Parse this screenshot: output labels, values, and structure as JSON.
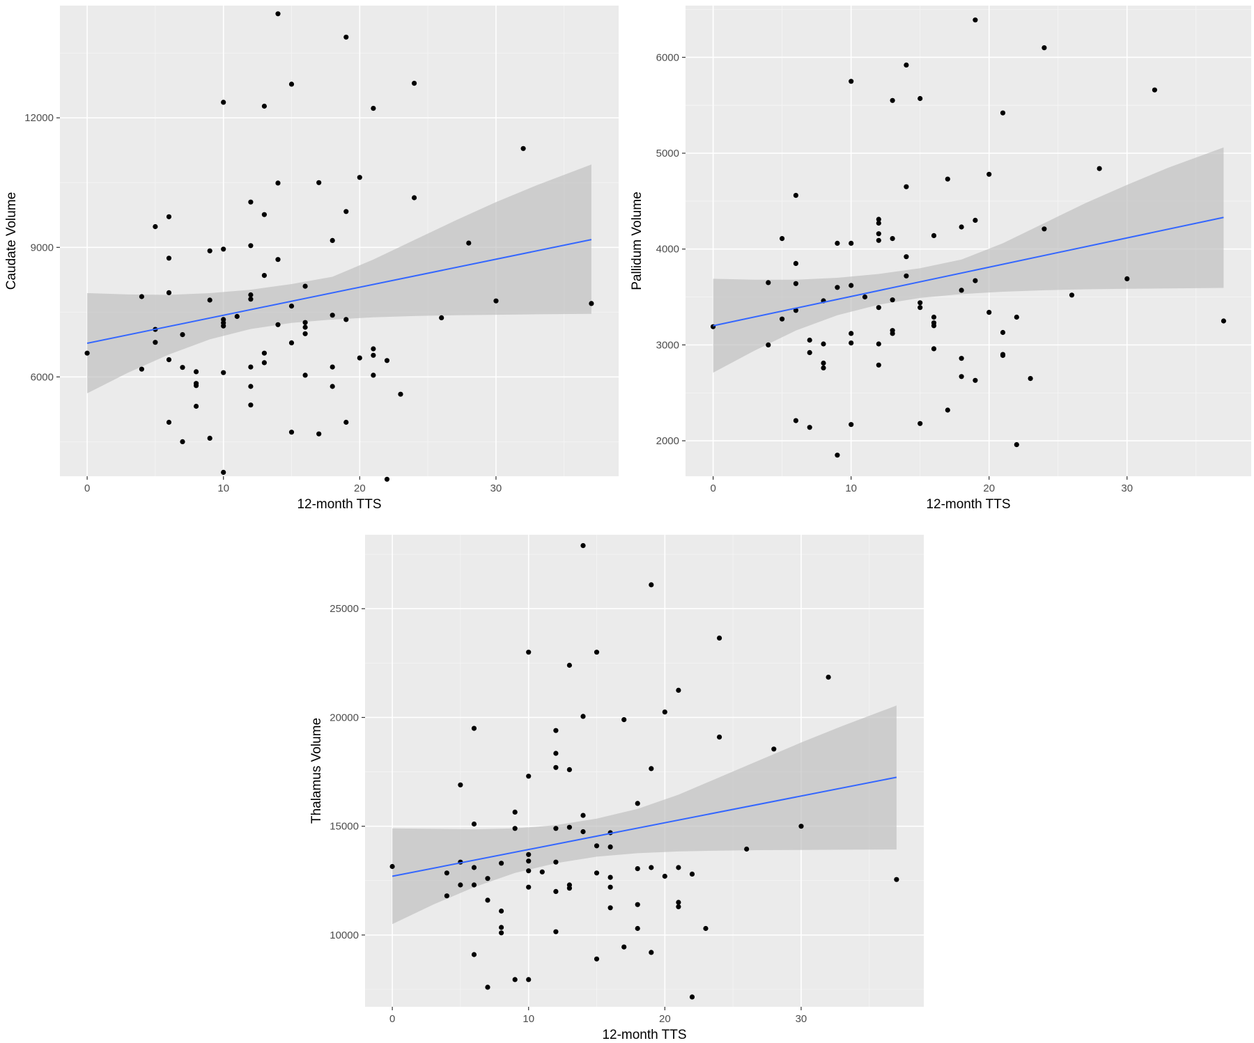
{
  "chart_data": [
    {
      "type": "scatter",
      "xlabel": "12-month TTS",
      "ylabel": "Caudate Volume",
      "xlim": [
        -2,
        39
      ],
      "ylim": [
        3700,
        14600
      ],
      "xticks": [
        0,
        10,
        20,
        30
      ],
      "yticks": [
        6000,
        9000,
        12000
      ],
      "grid": true,
      "colors": {
        "points": "#000000",
        "fit": "#3366ff",
        "ribbon": "#bdbdbd",
        "panel": "#ebebeb"
      },
      "fit": {
        "x": [
          0,
          37
        ],
        "y": [
          6780,
          9180
        ]
      },
      "ribbon": {
        "x": [
          0,
          3,
          6,
          9,
          12,
          15,
          18,
          21,
          24,
          27,
          30,
          33,
          37
        ],
        "lower": [
          5620,
          6100,
          6520,
          6870,
          7110,
          7250,
          7330,
          7380,
          7410,
          7430,
          7440,
          7450,
          7460
        ],
        "upper": [
          7940,
          7910,
          7900,
          7940,
          8020,
          8150,
          8320,
          8720,
          9170,
          9620,
          10050,
          10440,
          10920
        ]
      },
      "points": [
        {
          "x": 0,
          "y": 6550
        },
        {
          "x": 4,
          "y": 7860
        },
        {
          "x": 4,
          "y": 6180
        },
        {
          "x": 5,
          "y": 9480
        },
        {
          "x": 5,
          "y": 7100
        },
        {
          "x": 5,
          "y": 6800
        },
        {
          "x": 6,
          "y": 9710
        },
        {
          "x": 6,
          "y": 8750
        },
        {
          "x": 6,
          "y": 7950
        },
        {
          "x": 6,
          "y": 6400
        },
        {
          "x": 6,
          "y": 4950
        },
        {
          "x": 7,
          "y": 6980
        },
        {
          "x": 7,
          "y": 6220
        },
        {
          "x": 7,
          "y": 4500
        },
        {
          "x": 8,
          "y": 6120
        },
        {
          "x": 8,
          "y": 5850
        },
        {
          "x": 8,
          "y": 5800
        },
        {
          "x": 8,
          "y": 5320
        },
        {
          "x": 9,
          "y": 8920
        },
        {
          "x": 9,
          "y": 7780
        },
        {
          "x": 9,
          "y": 4580
        },
        {
          "x": 10,
          "y": 12360
        },
        {
          "x": 10,
          "y": 8960
        },
        {
          "x": 10,
          "y": 7330
        },
        {
          "x": 10,
          "y": 7250
        },
        {
          "x": 10,
          "y": 7180
        },
        {
          "x": 10,
          "y": 6100
        },
        {
          "x": 10,
          "y": 3790
        },
        {
          "x": 11,
          "y": 7400
        },
        {
          "x": 12,
          "y": 10050
        },
        {
          "x": 12,
          "y": 9040
        },
        {
          "x": 12,
          "y": 7900
        },
        {
          "x": 12,
          "y": 7800
        },
        {
          "x": 12,
          "y": 6230
        },
        {
          "x": 12,
          "y": 5780
        },
        {
          "x": 12,
          "y": 5350
        },
        {
          "x": 13,
          "y": 12270
        },
        {
          "x": 13,
          "y": 9760
        },
        {
          "x": 13,
          "y": 8350
        },
        {
          "x": 13,
          "y": 6550
        },
        {
          "x": 13,
          "y": 6330
        },
        {
          "x": 14,
          "y": 14410
        },
        {
          "x": 14,
          "y": 10490
        },
        {
          "x": 14,
          "y": 8720
        },
        {
          "x": 14,
          "y": 7210
        },
        {
          "x": 15,
          "y": 12780
        },
        {
          "x": 15,
          "y": 7640
        },
        {
          "x": 15,
          "y": 6790
        },
        {
          "x": 15,
          "y": 4720
        },
        {
          "x": 16,
          "y": 8100
        },
        {
          "x": 16,
          "y": 7260
        },
        {
          "x": 16,
          "y": 7150
        },
        {
          "x": 16,
          "y": 7000
        },
        {
          "x": 16,
          "y": 6040
        },
        {
          "x": 17,
          "y": 10500
        },
        {
          "x": 17,
          "y": 4680
        },
        {
          "x": 18,
          "y": 9160
        },
        {
          "x": 18,
          "y": 7430
        },
        {
          "x": 18,
          "y": 6230
        },
        {
          "x": 18,
          "y": 5780
        },
        {
          "x": 19,
          "y": 13870
        },
        {
          "x": 19,
          "y": 9830
        },
        {
          "x": 19,
          "y": 7330
        },
        {
          "x": 19,
          "y": 4950
        },
        {
          "x": 20,
          "y": 10620
        },
        {
          "x": 20,
          "y": 6440
        },
        {
          "x": 21,
          "y": 12220
        },
        {
          "x": 21,
          "y": 6650
        },
        {
          "x": 21,
          "y": 6500
        },
        {
          "x": 21,
          "y": 6040
        },
        {
          "x": 22,
          "y": 6380
        },
        {
          "x": 22,
          "y": 3630
        },
        {
          "x": 23,
          "y": 5600
        },
        {
          "x": 24,
          "y": 12800
        },
        {
          "x": 24,
          "y": 10150
        },
        {
          "x": 26,
          "y": 7370
        },
        {
          "x": 28,
          "y": 9100
        },
        {
          "x": 30,
          "y": 7760
        },
        {
          "x": 32,
          "y": 11290
        },
        {
          "x": 37,
          "y": 7700
        }
      ]
    },
    {
      "type": "scatter",
      "xlabel": "12-month TTS",
      "ylabel": "Pallidum Volume",
      "xlim": [
        -2,
        39
      ],
      "ylim": [
        1630,
        6540
      ],
      "xticks": [
        0,
        10,
        20,
        30
      ],
      "yticks": [
        2000,
        3000,
        4000,
        5000,
        6000
      ],
      "grid": true,
      "colors": {
        "points": "#000000",
        "fit": "#3366ff",
        "ribbon": "#bdbdbd",
        "panel": "#ebebeb"
      },
      "fit": {
        "x": [
          0,
          37
        ],
        "y": [
          3200,
          4330
        ]
      },
      "ribbon": {
        "x": [
          0,
          3,
          6,
          9,
          12,
          15,
          18,
          21,
          24,
          27,
          30,
          33,
          37
        ],
        "lower": [
          2710,
          2940,
          3150,
          3310,
          3420,
          3490,
          3530,
          3555,
          3570,
          3580,
          3585,
          3590,
          3595
        ],
        "upper": [
          3690,
          3680,
          3680,
          3700,
          3740,
          3800,
          3890,
          4060,
          4270,
          4480,
          4670,
          4850,
          5060
        ]
      },
      "points": [
        {
          "x": 0,
          "y": 3190
        },
        {
          "x": 4,
          "y": 3650
        },
        {
          "x": 4,
          "y": 3000
        },
        {
          "x": 5,
          "y": 4110
        },
        {
          "x": 5,
          "y": 3270
        },
        {
          "x": 6,
          "y": 4560
        },
        {
          "x": 6,
          "y": 3850
        },
        {
          "x": 6,
          "y": 3640
        },
        {
          "x": 6,
          "y": 3360
        },
        {
          "x": 6,
          "y": 2210
        },
        {
          "x": 7,
          "y": 3050
        },
        {
          "x": 7,
          "y": 2920
        },
        {
          "x": 7,
          "y": 2140
        },
        {
          "x": 8,
          "y": 3460
        },
        {
          "x": 8,
          "y": 3010
        },
        {
          "x": 8,
          "y": 2810
        },
        {
          "x": 8,
          "y": 2760
        },
        {
          "x": 9,
          "y": 4060
        },
        {
          "x": 9,
          "y": 3600
        },
        {
          "x": 9,
          "y": 1850
        },
        {
          "x": 10,
          "y": 5750
        },
        {
          "x": 10,
          "y": 4060
        },
        {
          "x": 10,
          "y": 3620
        },
        {
          "x": 10,
          "y": 3120
        },
        {
          "x": 10,
          "y": 3020
        },
        {
          "x": 10,
          "y": 2170
        },
        {
          "x": 11,
          "y": 3500
        },
        {
          "x": 12,
          "y": 4310
        },
        {
          "x": 12,
          "y": 4270
        },
        {
          "x": 12,
          "y": 4160
        },
        {
          "x": 12,
          "y": 4090
        },
        {
          "x": 12,
          "y": 3390
        },
        {
          "x": 12,
          "y": 3010
        },
        {
          "x": 12,
          "y": 2790
        },
        {
          "x": 13,
          "y": 5550
        },
        {
          "x": 13,
          "y": 4110
        },
        {
          "x": 13,
          "y": 3470
        },
        {
          "x": 13,
          "y": 3150
        },
        {
          "x": 13,
          "y": 3120
        },
        {
          "x": 14,
          "y": 5920
        },
        {
          "x": 14,
          "y": 4650
        },
        {
          "x": 14,
          "y": 3920
        },
        {
          "x": 14,
          "y": 3720
        },
        {
          "x": 15,
          "y": 5570
        },
        {
          "x": 15,
          "y": 3440
        },
        {
          "x": 15,
          "y": 3390
        },
        {
          "x": 15,
          "y": 2180
        },
        {
          "x": 16,
          "y": 4140
        },
        {
          "x": 16,
          "y": 3290
        },
        {
          "x": 16,
          "y": 3230
        },
        {
          "x": 16,
          "y": 3200
        },
        {
          "x": 16,
          "y": 2960
        },
        {
          "x": 17,
          "y": 4730
        },
        {
          "x": 17,
          "y": 2320
        },
        {
          "x": 18,
          "y": 4230
        },
        {
          "x": 18,
          "y": 3570
        },
        {
          "x": 18,
          "y": 2860
        },
        {
          "x": 18,
          "y": 2670
        },
        {
          "x": 19,
          "y": 6390
        },
        {
          "x": 19,
          "y": 4300
        },
        {
          "x": 19,
          "y": 3670
        },
        {
          "x": 19,
          "y": 2630
        },
        {
          "x": 20,
          "y": 4780
        },
        {
          "x": 20,
          "y": 3340
        },
        {
          "x": 21,
          "y": 5420
        },
        {
          "x": 21,
          "y": 3130
        },
        {
          "x": 21,
          "y": 2900
        },
        {
          "x": 21,
          "y": 2890
        },
        {
          "x": 22,
          "y": 3290
        },
        {
          "x": 22,
          "y": 1960
        },
        {
          "x": 23,
          "y": 2650
        },
        {
          "x": 24,
          "y": 6100
        },
        {
          "x": 24,
          "y": 4210
        },
        {
          "x": 26,
          "y": 3520
        },
        {
          "x": 28,
          "y": 4840
        },
        {
          "x": 30,
          "y": 3690
        },
        {
          "x": 32,
          "y": 5660
        },
        {
          "x": 37,
          "y": 3250
        }
      ]
    },
    {
      "type": "scatter",
      "xlabel": "12-month TTS",
      "ylabel": "Thalamus Volume",
      "xlim": [
        -2,
        39
      ],
      "ylim": [
        6700,
        28400
      ],
      "xticks": [
        0,
        10,
        20,
        30
      ],
      "yticks": [
        10000,
        15000,
        20000,
        25000
      ],
      "grid": true,
      "colors": {
        "points": "#000000",
        "fit": "#3366ff",
        "ribbon": "#bdbdbd",
        "panel": "#ebebeb"
      },
      "fit": {
        "x": [
          0,
          37
        ],
        "y": [
          12700,
          17250
        ]
      },
      "ribbon": {
        "x": [
          0,
          3,
          6,
          9,
          12,
          15,
          18,
          21,
          24,
          27,
          30,
          33,
          37
        ],
        "lower": [
          10500,
          11400,
          12200,
          12850,
          13300,
          13600,
          13760,
          13840,
          13880,
          13900,
          13910,
          13920,
          13930
        ],
        "upper": [
          14900,
          14880,
          14860,
          14900,
          15050,
          15350,
          15800,
          16450,
          17250,
          18050,
          18850,
          19600,
          20550
        ]
      },
      "points": [
        {
          "x": 0,
          "y": 13150
        },
        {
          "x": 4,
          "y": 12850
        },
        {
          "x": 4,
          "y": 11800
        },
        {
          "x": 5,
          "y": 16900
        },
        {
          "x": 5,
          "y": 13350
        },
        {
          "x": 5,
          "y": 12300
        },
        {
          "x": 6,
          "y": 19500
        },
        {
          "x": 6,
          "y": 15100
        },
        {
          "x": 6,
          "y": 13100
        },
        {
          "x": 6,
          "y": 12300
        },
        {
          "x": 6,
          "y": 9100
        },
        {
          "x": 7,
          "y": 12600
        },
        {
          "x": 7,
          "y": 11600
        },
        {
          "x": 7,
          "y": 7600
        },
        {
          "x": 8,
          "y": 13300
        },
        {
          "x": 8,
          "y": 11100
        },
        {
          "x": 8,
          "y": 10350
        },
        {
          "x": 8,
          "y": 10100
        },
        {
          "x": 9,
          "y": 15650
        },
        {
          "x": 9,
          "y": 14900
        },
        {
          "x": 9,
          "y": 7950
        },
        {
          "x": 10,
          "y": 23000
        },
        {
          "x": 10,
          "y": 17300
        },
        {
          "x": 10,
          "y": 13700
        },
        {
          "x": 10,
          "y": 13400
        },
        {
          "x": 10,
          "y": 12950
        },
        {
          "x": 10,
          "y": 12200
        },
        {
          "x": 10,
          "y": 7950
        },
        {
          "x": 11,
          "y": 12900
        },
        {
          "x": 12,
          "y": 19400
        },
        {
          "x": 12,
          "y": 18350
        },
        {
          "x": 12,
          "y": 17700
        },
        {
          "x": 12,
          "y": 14900
        },
        {
          "x": 12,
          "y": 13350
        },
        {
          "x": 12,
          "y": 12000
        },
        {
          "x": 12,
          "y": 10150
        },
        {
          "x": 13,
          "y": 22400
        },
        {
          "x": 13,
          "y": 17600
        },
        {
          "x": 13,
          "y": 14950
        },
        {
          "x": 13,
          "y": 12300
        },
        {
          "x": 13,
          "y": 12150
        },
        {
          "x": 14,
          "y": 27900
        },
        {
          "x": 14,
          "y": 20050
        },
        {
          "x": 14,
          "y": 15500
        },
        {
          "x": 14,
          "y": 14750
        },
        {
          "x": 15,
          "y": 23000
        },
        {
          "x": 15,
          "y": 14100
        },
        {
          "x": 15,
          "y": 12850
        },
        {
          "x": 15,
          "y": 8900
        },
        {
          "x": 16,
          "y": 14700
        },
        {
          "x": 16,
          "y": 14050
        },
        {
          "x": 16,
          "y": 12650
        },
        {
          "x": 16,
          "y": 12200
        },
        {
          "x": 16,
          "y": 11250
        },
        {
          "x": 17,
          "y": 19900
        },
        {
          "x": 17,
          "y": 9450
        },
        {
          "x": 18,
          "y": 16050
        },
        {
          "x": 18,
          "y": 13050
        },
        {
          "x": 18,
          "y": 11400
        },
        {
          "x": 18,
          "y": 10300
        },
        {
          "x": 19,
          "y": 26100
        },
        {
          "x": 19,
          "y": 17650
        },
        {
          "x": 19,
          "y": 13100
        },
        {
          "x": 19,
          "y": 9200
        },
        {
          "x": 20,
          "y": 20250
        },
        {
          "x": 20,
          "y": 12700
        },
        {
          "x": 21,
          "y": 21250
        },
        {
          "x": 21,
          "y": 13100
        },
        {
          "x": 21,
          "y": 11500
        },
        {
          "x": 21,
          "y": 11300
        },
        {
          "x": 22,
          "y": 12800
        },
        {
          "x": 22,
          "y": 7150
        },
        {
          "x": 23,
          "y": 10300
        },
        {
          "x": 24,
          "y": 23650
        },
        {
          "x": 24,
          "y": 19100
        },
        {
          "x": 26,
          "y": 13950
        },
        {
          "x": 28,
          "y": 18550
        },
        {
          "x": 30,
          "y": 15000
        },
        {
          "x": 32,
          "y": 21850
        },
        {
          "x": 37,
          "y": 12550
        }
      ]
    }
  ]
}
